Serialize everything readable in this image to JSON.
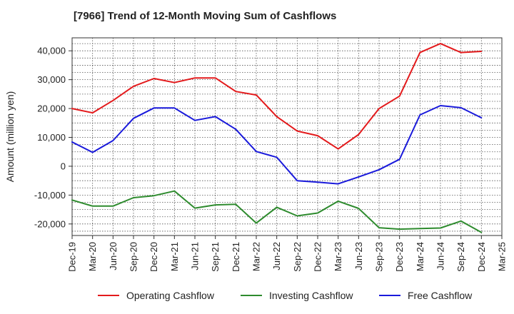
{
  "title": "[7966]  Trend of 12-Month Moving Sum of Cashflows",
  "colors": {
    "operating": "#e31a1c",
    "investing": "#2e8b2e",
    "free": "#1a1adb",
    "grid": "#555555",
    "axis": "#333333"
  },
  "chart_data": {
    "type": "line",
    "title": "[7966]  Trend of 12-Month Moving Sum of Cashflows",
    "xlabel": "",
    "ylabel": "Amount (million yen)",
    "ylim": [
      -24000,
      44500
    ],
    "yticks": [
      -20000,
      -10000,
      0,
      10000,
      20000,
      30000,
      40000
    ],
    "ytick_labels": [
      "-20,000",
      "-10,000",
      "0",
      "10,000",
      "20,000",
      "30,000",
      "40,000"
    ],
    "grid": true,
    "legend_position": "bottom",
    "categories": [
      "Dec-19",
      "Mar-20",
      "Jun-20",
      "Sep-20",
      "Dec-20",
      "Mar-21",
      "Jun-21",
      "Sep-21",
      "Dec-21",
      "Mar-22",
      "Jun-22",
      "Sep-22",
      "Dec-22",
      "Mar-23",
      "Jun-23",
      "Sep-23",
      "Dec-23",
      "Mar-24",
      "Jun-24",
      "Sep-24",
      "Dec-24",
      "Mar-25"
    ],
    "series": [
      {
        "name": "Operating Cashflow",
        "color": "#e31a1c",
        "values": [
          20000,
          18500,
          22800,
          27700,
          30400,
          29000,
          30600,
          30600,
          25900,
          24700,
          17200,
          12200,
          10600,
          6000,
          11000,
          20000,
          24300,
          39400,
          42500,
          39400,
          39800,
          null
        ]
      },
      {
        "name": "Investing Cashflow",
        "color": "#2e8b2e",
        "values": [
          -11700,
          -13800,
          -13800,
          -10900,
          -10200,
          -8600,
          -14500,
          -13400,
          -13200,
          -19700,
          -14200,
          -17200,
          -16200,
          -12100,
          -14600,
          -21300,
          -21800,
          -21600,
          -21400,
          -19000,
          -22900,
          null
        ]
      },
      {
        "name": "Free Cashflow",
        "color": "#1a1adb",
        "values": [
          8400,
          4800,
          8900,
          16600,
          20200,
          20200,
          15900,
          17200,
          12800,
          5100,
          3100,
          -5000,
          -5500,
          -6100,
          -3700,
          -1200,
          2400,
          17800,
          21000,
          20300,
          16800,
          null
        ]
      }
    ]
  }
}
